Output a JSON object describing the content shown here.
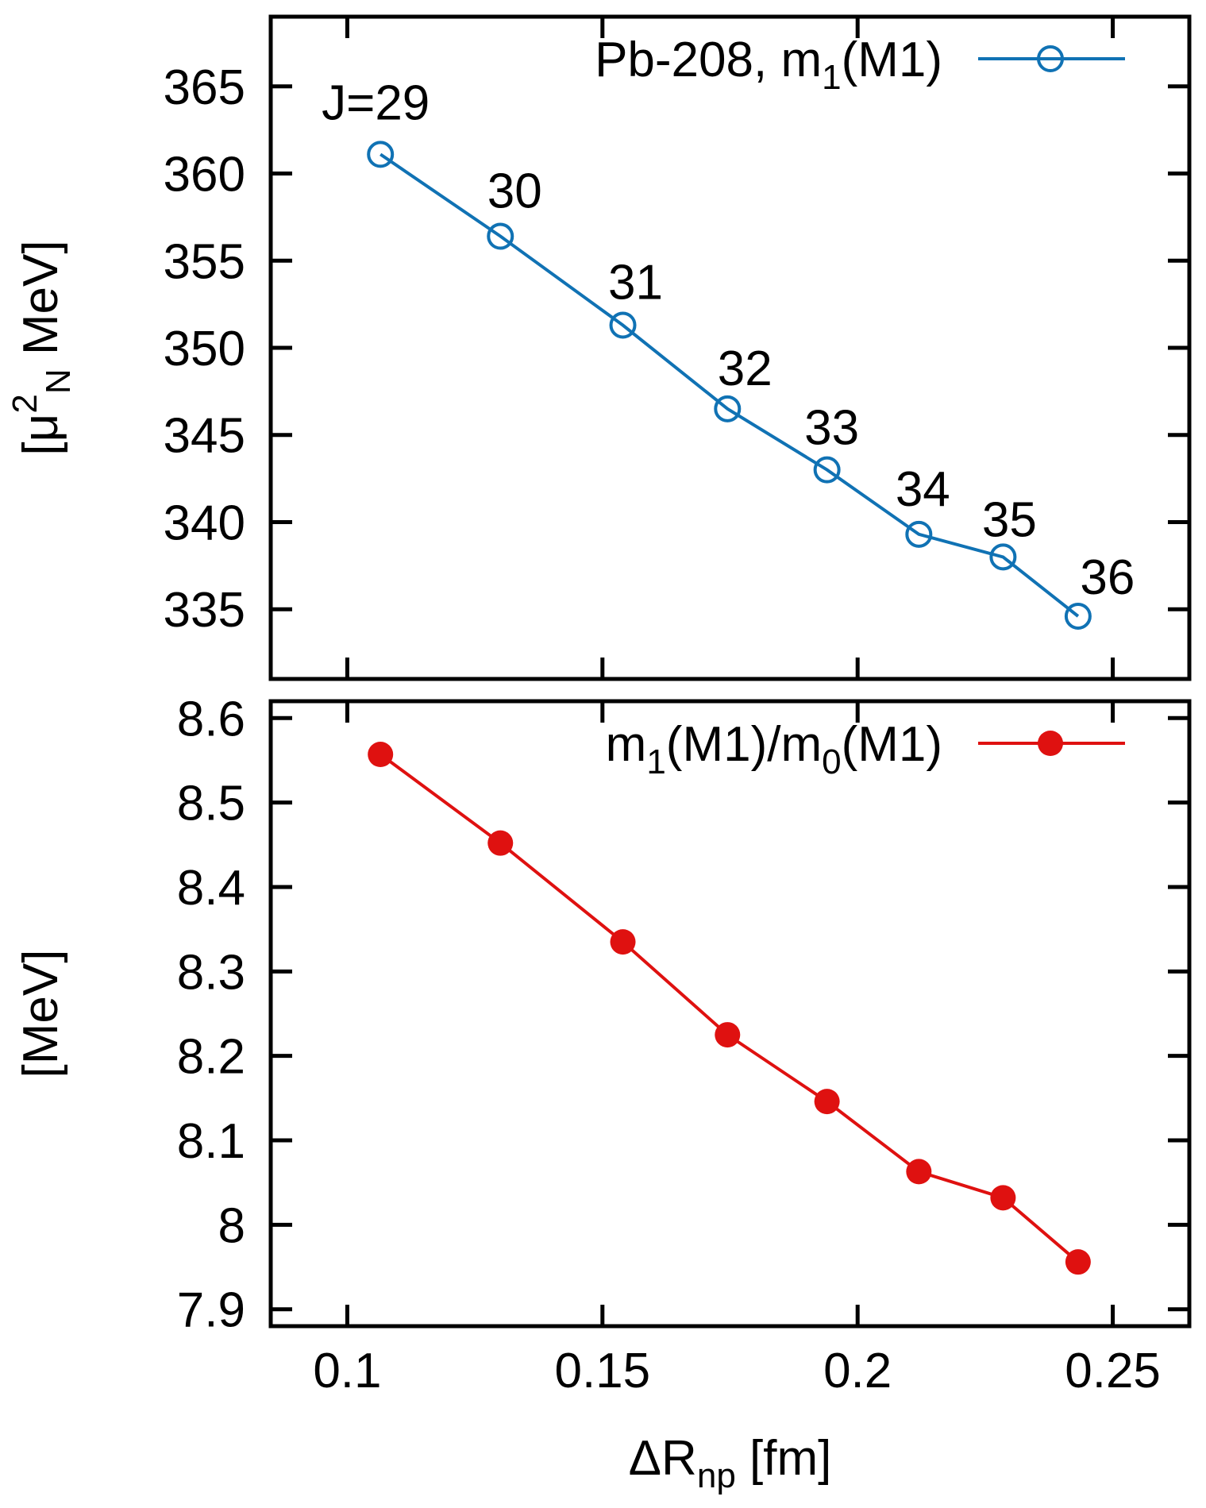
{
  "figure": {
    "background": "#ffffff",
    "axis_color": "#000000"
  },
  "chart_data": {
    "type": "line",
    "grid": false,
    "x_axis": {
      "label_rich": [
        {
          "t": "ΔR"
        },
        {
          "t": "np",
          "sub": 1
        },
        {
          "t": "  [fm]"
        }
      ],
      "label_plain": "ΔR_np [fm]",
      "range": [
        0.085,
        0.265
      ],
      "ticks": [
        {
          "v": 0.1,
          "label": "0.1"
        },
        {
          "v": 0.15,
          "label": "0.15"
        },
        {
          "v": 0.2,
          "label": "0.2"
        },
        {
          "v": 0.25,
          "label": "0.25"
        }
      ]
    },
    "panels": [
      {
        "id": "top",
        "y_axis": {
          "label_rich": [
            {
              "t": "[μ"
            },
            {
              "t": "2",
              "sup": 1
            },
            {
              "t": "N",
              "sub": 1
            },
            {
              "t": " MeV]"
            }
          ],
          "label_plain": "[μ²_N MeV]",
          "range": [
            331,
            369
          ],
          "ticks": [
            {
              "v": 335,
              "label": "335"
            },
            {
              "v": 340,
              "label": "340"
            },
            {
              "v": 345,
              "label": "345"
            },
            {
              "v": 350,
              "label": "350"
            },
            {
              "v": 355,
              "label": "355"
            },
            {
              "v": 360,
              "label": "360"
            },
            {
              "v": 365,
              "label": "365"
            }
          ]
        },
        "legend": {
          "rich": [
            {
              "t": "Pb-208, m"
            },
            {
              "t": "1",
              "sub": 1
            },
            {
              "t": "(M1)"
            }
          ],
          "plain": "Pb-208, m1(M1)"
        },
        "series": {
          "name": "Pb-208, m1(M1)",
          "color": "#1072b4",
          "marker": "open-circle",
          "points": [
            {
              "x": 0.1065,
              "y": 361.1,
              "label": "J=29",
              "ldx": -6,
              "ldy": -44
            },
            {
              "x": 0.13,
              "y": 356.4,
              "label": "30",
              "ldx": 18,
              "ldy": -36
            },
            {
              "x": 0.154,
              "y": 351.3,
              "label": "31",
              "ldx": 16,
              "ldy": -33
            },
            {
              "x": 0.1745,
              "y": 346.5,
              "label": "32",
              "ldx": 22,
              "ldy": -30
            },
            {
              "x": 0.194,
              "y": 343.0,
              "label": "33",
              "ldx": 6,
              "ldy": -32
            },
            {
              "x": 0.212,
              "y": 339.3,
              "label": "34",
              "ldx": 5,
              "ldy": -36
            },
            {
              "x": 0.2285,
              "y": 338.0,
              "label": "35",
              "ldx": 8,
              "ldy": -26
            },
            {
              "x": 0.2432,
              "y": 334.6,
              "label": "36",
              "ldx": 37,
              "ldy": -28
            }
          ]
        }
      },
      {
        "id": "bottom",
        "y_axis": {
          "label_rich": [
            {
              "t": "[MeV]"
            }
          ],
          "label_plain": "[MeV]",
          "range": [
            7.88,
            8.62
          ],
          "ticks": [
            {
              "v": 7.9,
              "label": "7.9"
            },
            {
              "v": 8.0,
              "label": "8"
            },
            {
              "v": 8.1,
              "label": "8.1"
            },
            {
              "v": 8.2,
              "label": "8.2"
            },
            {
              "v": 8.3,
              "label": "8.3"
            },
            {
              "v": 8.4,
              "label": "8.4"
            },
            {
              "v": 8.5,
              "label": "8.5"
            },
            {
              "v": 8.6,
              "label": "8.6"
            }
          ]
        },
        "legend": {
          "rich": [
            {
              "t": "m"
            },
            {
              "t": "1",
              "sub": 1
            },
            {
              "t": "(M1)/m"
            },
            {
              "t": "0",
              "sub": 1
            },
            {
              "t": "(M1)"
            }
          ],
          "plain": "m1(M1)/m0(M1)"
        },
        "series": {
          "name": "m1(M1)/m0(M1)",
          "color": "#df1110",
          "marker": "filled-circle",
          "points": [
            {
              "x": 0.1065,
              "y": 8.557
            },
            {
              "x": 0.13,
              "y": 8.452
            },
            {
              "x": 0.154,
              "y": 8.335
            },
            {
              "x": 0.1745,
              "y": 8.225
            },
            {
              "x": 0.194,
              "y": 8.146
            },
            {
              "x": 0.212,
              "y": 8.063
            },
            {
              "x": 0.2285,
              "y": 8.032
            },
            {
              "x": 0.2432,
              "y": 7.956
            }
          ]
        }
      }
    ]
  }
}
